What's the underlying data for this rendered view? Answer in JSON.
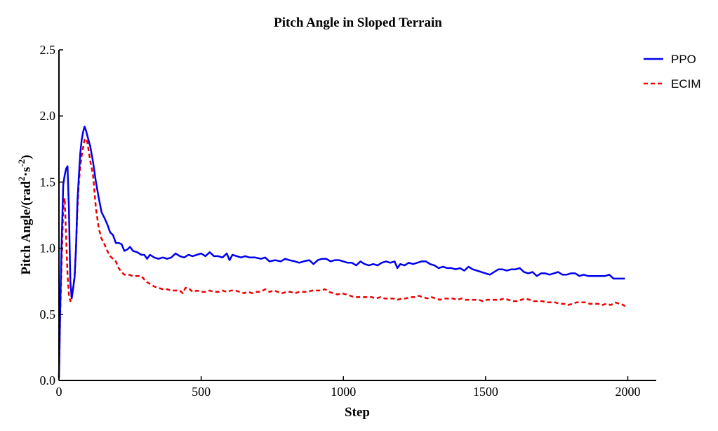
{
  "chart_data": {
    "type": "line",
    "title": "Pitch Angle in Sloped Terrain",
    "xlabel": "Step",
    "ylabel_main": "Pitch Angle/(rad",
    "ylabel_sup1": "2",
    "ylabel_mid": "·s",
    "ylabel_sup2": "-2",
    "ylabel_end": ")",
    "xlim": [
      0,
      2100
    ],
    "ylim": [
      0,
      2.5
    ],
    "xticks": [
      0,
      500,
      1000,
      1500,
      2000
    ],
    "xtick_labels": [
      "0",
      "500",
      "1000",
      "1500",
      "2000"
    ],
    "yticks": [
      0,
      0.5,
      1.0,
      1.5,
      2.0,
      2.5
    ],
    "ytick_labels": [
      "0.0",
      "0.5",
      "1.0",
      "1.5",
      "2.0",
      "2.5"
    ],
    "legend_position": "top-right",
    "series": [
      {
        "name": "PPO",
        "color": "#0000ee",
        "style": "solid",
        "points": [
          [
            0,
            0.02
          ],
          [
            5,
            0.6
          ],
          [
            10,
            1.1
          ],
          [
            15,
            1.48
          ],
          [
            20,
            1.55
          ],
          [
            25,
            1.6
          ],
          [
            30,
            1.62
          ],
          [
            35,
            1.3
          ],
          [
            40,
            0.75
          ],
          [
            45,
            0.62
          ],
          [
            50,
            0.7
          ],
          [
            55,
            0.78
          ],
          [
            60,
            1.0
          ],
          [
            65,
            1.35
          ],
          [
            70,
            1.55
          ],
          [
            75,
            1.72
          ],
          [
            80,
            1.82
          ],
          [
            85,
            1.88
          ],
          [
            90,
            1.92
          ],
          [
            95,
            1.89
          ],
          [
            100,
            1.85
          ],
          [
            110,
            1.77
          ],
          [
            120,
            1.65
          ],
          [
            130,
            1.5
          ],
          [
            140,
            1.38
          ],
          [
            150,
            1.27
          ],
          [
            160,
            1.23
          ],
          [
            170,
            1.18
          ],
          [
            180,
            1.12
          ],
          [
            190,
            1.1
          ],
          [
            200,
            1.04
          ],
          [
            210,
            1.04
          ],
          [
            220,
            1.03
          ],
          [
            230,
            0.98
          ],
          [
            240,
            0.99
          ],
          [
            250,
            1.01
          ],
          [
            260,
            0.98
          ],
          [
            275,
            0.97
          ],
          [
            290,
            0.95
          ],
          [
            300,
            0.95
          ],
          [
            310,
            0.92
          ],
          [
            320,
            0.95
          ],
          [
            335,
            0.93
          ],
          [
            350,
            0.92
          ],
          [
            365,
            0.93
          ],
          [
            380,
            0.92
          ],
          [
            395,
            0.93
          ],
          [
            410,
            0.96
          ],
          [
            425,
            0.94
          ],
          [
            440,
            0.93
          ],
          [
            455,
            0.95
          ],
          [
            470,
            0.94
          ],
          [
            485,
            0.95
          ],
          [
            500,
            0.96
          ],
          [
            515,
            0.94
          ],
          [
            530,
            0.97
          ],
          [
            545,
            0.94
          ],
          [
            560,
            0.94
          ],
          [
            575,
            0.93
          ],
          [
            590,
            0.96
          ],
          [
            600,
            0.91
          ],
          [
            610,
            0.95
          ],
          [
            625,
            0.94
          ],
          [
            640,
            0.93
          ],
          [
            655,
            0.94
          ],
          [
            670,
            0.93
          ],
          [
            690,
            0.93
          ],
          [
            710,
            0.92
          ],
          [
            725,
            0.93
          ],
          [
            740,
            0.9
          ],
          [
            760,
            0.91
          ],
          [
            780,
            0.9
          ],
          [
            795,
            0.92
          ],
          [
            810,
            0.91
          ],
          [
            830,
            0.9
          ],
          [
            845,
            0.89
          ],
          [
            860,
            0.9
          ],
          [
            880,
            0.91
          ],
          [
            895,
            0.88
          ],
          [
            910,
            0.91
          ],
          [
            925,
            0.92
          ],
          [
            940,
            0.92
          ],
          [
            955,
            0.9
          ],
          [
            970,
            0.91
          ],
          [
            985,
            0.91
          ],
          [
            1000,
            0.9
          ],
          [
            1015,
            0.89
          ],
          [
            1030,
            0.89
          ],
          [
            1045,
            0.87
          ],
          [
            1060,
            0.9
          ],
          [
            1075,
            0.88
          ],
          [
            1090,
            0.87
          ],
          [
            1105,
            0.88
          ],
          [
            1120,
            0.87
          ],
          [
            1135,
            0.89
          ],
          [
            1150,
            0.9
          ],
          [
            1165,
            0.89
          ],
          [
            1180,
            0.9
          ],
          [
            1190,
            0.85
          ],
          [
            1200,
            0.88
          ],
          [
            1215,
            0.87
          ],
          [
            1230,
            0.89
          ],
          [
            1245,
            0.88
          ],
          [
            1260,
            0.89
          ],
          [
            1275,
            0.9
          ],
          [
            1290,
            0.9
          ],
          [
            1305,
            0.88
          ],
          [
            1320,
            0.87
          ],
          [
            1335,
            0.85
          ],
          [
            1350,
            0.86
          ],
          [
            1365,
            0.85
          ],
          [
            1380,
            0.85
          ],
          [
            1395,
            0.84
          ],
          [
            1410,
            0.85
          ],
          [
            1425,
            0.83
          ],
          [
            1440,
            0.86
          ],
          [
            1455,
            0.84
          ],
          [
            1470,
            0.83
          ],
          [
            1485,
            0.82
          ],
          [
            1500,
            0.81
          ],
          [
            1515,
            0.8
          ],
          [
            1530,
            0.82
          ],
          [
            1545,
            0.84
          ],
          [
            1560,
            0.84
          ],
          [
            1575,
            0.83
          ],
          [
            1590,
            0.84
          ],
          [
            1605,
            0.84
          ],
          [
            1620,
            0.85
          ],
          [
            1635,
            0.82
          ],
          [
            1650,
            0.81
          ],
          [
            1665,
            0.82
          ],
          [
            1680,
            0.79
          ],
          [
            1695,
            0.81
          ],
          [
            1710,
            0.81
          ],
          [
            1725,
            0.8
          ],
          [
            1740,
            0.81
          ],
          [
            1755,
            0.82
          ],
          [
            1770,
            0.8
          ],
          [
            1785,
            0.8
          ],
          [
            1800,
            0.81
          ],
          [
            1815,
            0.81
          ],
          [
            1830,
            0.79
          ],
          [
            1845,
            0.8
          ],
          [
            1860,
            0.79
          ],
          [
            1875,
            0.79
          ],
          [
            1890,
            0.79
          ],
          [
            1905,
            0.79
          ],
          [
            1920,
            0.79
          ],
          [
            1935,
            0.8
          ],
          [
            1950,
            0.77
          ],
          [
            1965,
            0.77
          ],
          [
            1980,
            0.77
          ],
          [
            1990,
            0.77
          ]
        ]
      },
      {
        "name": "ECIM",
        "color": "#ee0000",
        "style": "dashed",
        "points": [
          [
            0,
            0.02
          ],
          [
            5,
            0.55
          ],
          [
            10,
            0.95
          ],
          [
            15,
            1.3
          ],
          [
            20,
            1.38
          ],
          [
            25,
            1.1
          ],
          [
            30,
            0.8
          ],
          [
            35,
            0.65
          ],
          [
            40,
            0.6
          ],
          [
            45,
            0.65
          ],
          [
            50,
            0.7
          ],
          [
            55,
            0.8
          ],
          [
            60,
            1.0
          ],
          [
            65,
            1.3
          ],
          [
            70,
            1.5
          ],
          [
            75,
            1.62
          ],
          [
            80,
            1.7
          ],
          [
            85,
            1.76
          ],
          [
            90,
            1.82
          ],
          [
            95,
            1.83
          ],
          [
            100,
            1.8
          ],
          [
            110,
            1.66
          ],
          [
            120,
            1.55
          ],
          [
            130,
            1.3
          ],
          [
            140,
            1.15
          ],
          [
            150,
            1.07
          ],
          [
            160,
            1.03
          ],
          [
            170,
            0.98
          ],
          [
            180,
            0.94
          ],
          [
            190,
            0.92
          ],
          [
            200,
            0.9
          ],
          [
            210,
            0.85
          ],
          [
            220,
            0.82
          ],
          [
            230,
            0.8
          ],
          [
            245,
            0.8
          ],
          [
            260,
            0.79
          ],
          [
            275,
            0.79
          ],
          [
            290,
            0.79
          ],
          [
            305,
            0.75
          ],
          [
            320,
            0.73
          ],
          [
            335,
            0.71
          ],
          [
            350,
            0.7
          ],
          [
            365,
            0.69
          ],
          [
            380,
            0.69
          ],
          [
            395,
            0.68
          ],
          [
            410,
            0.68
          ],
          [
            425,
            0.68
          ],
          [
            435,
            0.66
          ],
          [
            445,
            0.7
          ],
          [
            455,
            0.7
          ],
          [
            470,
            0.67
          ],
          [
            485,
            0.68
          ],
          [
            500,
            0.67
          ],
          [
            515,
            0.67
          ],
          [
            530,
            0.68
          ],
          [
            545,
            0.67
          ],
          [
            560,
            0.67
          ],
          [
            575,
            0.68
          ],
          [
            590,
            0.67
          ],
          [
            605,
            0.68
          ],
          [
            620,
            0.68
          ],
          [
            635,
            0.67
          ],
          [
            650,
            0.66
          ],
          [
            665,
            0.67
          ],
          [
            680,
            0.66
          ],
          [
            695,
            0.67
          ],
          [
            710,
            0.67
          ],
          [
            725,
            0.69
          ],
          [
            740,
            0.67
          ],
          [
            755,
            0.68
          ],
          [
            770,
            0.67
          ],
          [
            785,
            0.66
          ],
          [
            800,
            0.67
          ],
          [
            815,
            0.67
          ],
          [
            830,
            0.66
          ],
          [
            845,
            0.67
          ],
          [
            860,
            0.67
          ],
          [
            875,
            0.67
          ],
          [
            890,
            0.68
          ],
          [
            905,
            0.68
          ],
          [
            920,
            0.68
          ],
          [
            935,
            0.69
          ],
          [
            950,
            0.67
          ],
          [
            965,
            0.66
          ],
          [
            980,
            0.65
          ],
          [
            995,
            0.66
          ],
          [
            1010,
            0.65
          ],
          [
            1025,
            0.64
          ],
          [
            1040,
            0.63
          ],
          [
            1055,
            0.63
          ],
          [
            1070,
            0.63
          ],
          [
            1085,
            0.63
          ],
          [
            1100,
            0.63
          ],
          [
            1115,
            0.62
          ],
          [
            1130,
            0.63
          ],
          [
            1145,
            0.62
          ],
          [
            1160,
            0.62
          ],
          [
            1175,
            0.62
          ],
          [
            1190,
            0.61
          ],
          [
            1205,
            0.62
          ],
          [
            1220,
            0.62
          ],
          [
            1235,
            0.63
          ],
          [
            1250,
            0.63
          ],
          [
            1265,
            0.64
          ],
          [
            1280,
            0.63
          ],
          [
            1295,
            0.62
          ],
          [
            1310,
            0.63
          ],
          [
            1325,
            0.62
          ],
          [
            1340,
            0.61
          ],
          [
            1355,
            0.62
          ],
          [
            1370,
            0.62
          ],
          [
            1385,
            0.62
          ],
          [
            1400,
            0.61
          ],
          [
            1415,
            0.62
          ],
          [
            1430,
            0.61
          ],
          [
            1445,
            0.61
          ],
          [
            1460,
            0.61
          ],
          [
            1475,
            0.61
          ],
          [
            1490,
            0.6
          ],
          [
            1505,
            0.61
          ],
          [
            1520,
            0.61
          ],
          [
            1535,
            0.61
          ],
          [
            1550,
            0.61
          ],
          [
            1565,
            0.62
          ],
          [
            1580,
            0.61
          ],
          [
            1595,
            0.6
          ],
          [
            1610,
            0.6
          ],
          [
            1625,
            0.61
          ],
          [
            1640,
            0.62
          ],
          [
            1655,
            0.61
          ],
          [
            1670,
            0.6
          ],
          [
            1685,
            0.6
          ],
          [
            1700,
            0.6
          ],
          [
            1715,
            0.59
          ],
          [
            1730,
            0.59
          ],
          [
            1745,
            0.59
          ],
          [
            1760,
            0.58
          ],
          [
            1775,
            0.58
          ],
          [
            1790,
            0.57
          ],
          [
            1805,
            0.58
          ],
          [
            1820,
            0.59
          ],
          [
            1835,
            0.59
          ],
          [
            1850,
            0.59
          ],
          [
            1865,
            0.58
          ],
          [
            1880,
            0.58
          ],
          [
            1895,
            0.58
          ],
          [
            1910,
            0.57
          ],
          [
            1925,
            0.58
          ],
          [
            1940,
            0.57
          ],
          [
            1955,
            0.59
          ],
          [
            1970,
            0.58
          ],
          [
            1985,
            0.57
          ],
          [
            1990,
            0.56
          ]
        ]
      }
    ]
  }
}
